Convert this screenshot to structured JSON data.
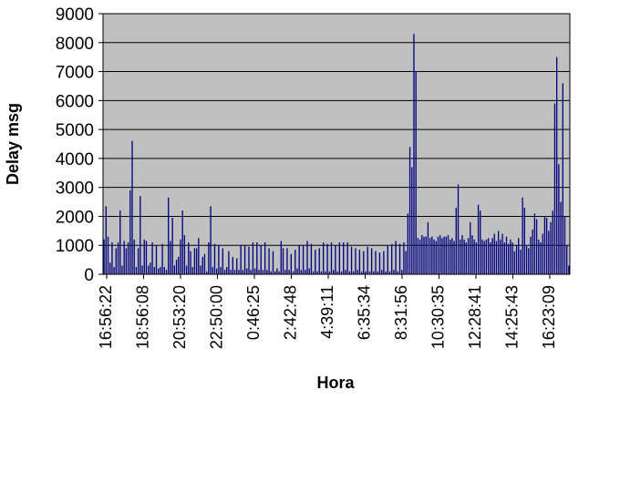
{
  "chart_data": {
    "type": "bar",
    "title": "",
    "xlabel": "Hora",
    "ylabel": "Delay msg",
    "ylim": [
      0,
      9000
    ],
    "yticks": [
      0,
      1000,
      2000,
      3000,
      4000,
      5000,
      6000,
      7000,
      8000,
      9000
    ],
    "xticks": [
      "16:56:22",
      "18:56:08",
      "20:53:20",
      "22:50:00",
      "0:46:25",
      "2:42:48",
      "4:39:11",
      "6:35:34",
      "8:31:56",
      "10:30:35",
      "12:28:41",
      "14:25:43",
      "16:23:09"
    ],
    "grid": true,
    "legend": "none",
    "plot_background": "#c0c0c0",
    "bar_color": "#000080",
    "series": [
      {
        "values": [
          1200,
          2350,
          1300,
          400,
          1100,
          250,
          900,
          1100,
          2200,
          300,
          1150,
          900,
          1100,
          2900,
          4600,
          1200,
          250,
          900,
          2700,
          300,
          1200,
          1150,
          300,
          400,
          1100,
          250,
          1000,
          200,
          250,
          1050,
          250,
          150,
          2650,
          1150,
          1950,
          300,
          500,
          600,
          1200,
          2200,
          1350,
          300,
          1100,
          800,
          250,
          900,
          900,
          1250,
          300,
          600,
          700,
          100,
          1100,
          2350,
          250,
          1050,
          200,
          1000,
          250,
          900,
          150,
          250,
          800,
          150,
          600,
          150,
          550,
          150,
          1000,
          150,
          1000,
          200,
          950,
          150,
          1100,
          200,
          1100,
          150,
          1000,
          150,
          1100,
          150,
          900,
          100,
          800,
          100,
          200,
          100,
          1150,
          900,
          150,
          900,
          150,
          700,
          100,
          850,
          200,
          1000,
          150,
          1000,
          150,
          1150,
          200,
          1050,
          100,
          850,
          100,
          900,
          100,
          1100,
          100,
          1050,
          100,
          1100,
          150,
          1000,
          100,
          1100,
          100,
          1100,
          150,
          1100,
          100,
          950,
          100,
          900,
          150,
          850,
          100,
          800,
          100,
          950,
          100,
          900,
          100,
          800,
          100,
          750,
          150,
          800,
          100,
          1000,
          100,
          1050,
          150,
          1150,
          100,
          1050,
          150,
          1100,
          800,
          2100,
          4400,
          3700,
          8300,
          7000,
          1250,
          1200,
          1350,
          1300,
          1300,
          1800,
          1250,
          1300,
          1200,
          1150,
          1300,
          1350,
          1250,
          1300,
          1300,
          1350,
          1200,
          1250,
          1150,
          2300,
          3100,
          1200,
          1350,
          1200,
          1100,
          1250,
          1800,
          1350,
          1200,
          1100,
          2400,
          2200,
          1200,
          1150,
          1200,
          1250,
          1100,
          1250,
          1400,
          1150,
          1500,
          1200,
          1400,
          1100,
          1300,
          1050,
          1200,
          1100,
          800,
          1000,
          1250,
          850,
          2650,
          2300,
          1000,
          900,
          1300,
          1550,
          2100,
          1900,
          1200,
          1100,
          1400,
          2000,
          1950,
          1500,
          1800,
          2200,
          5900,
          7500,
          3800,
          2500,
          6600,
          2000,
          1000,
          300
        ]
      }
    ]
  }
}
